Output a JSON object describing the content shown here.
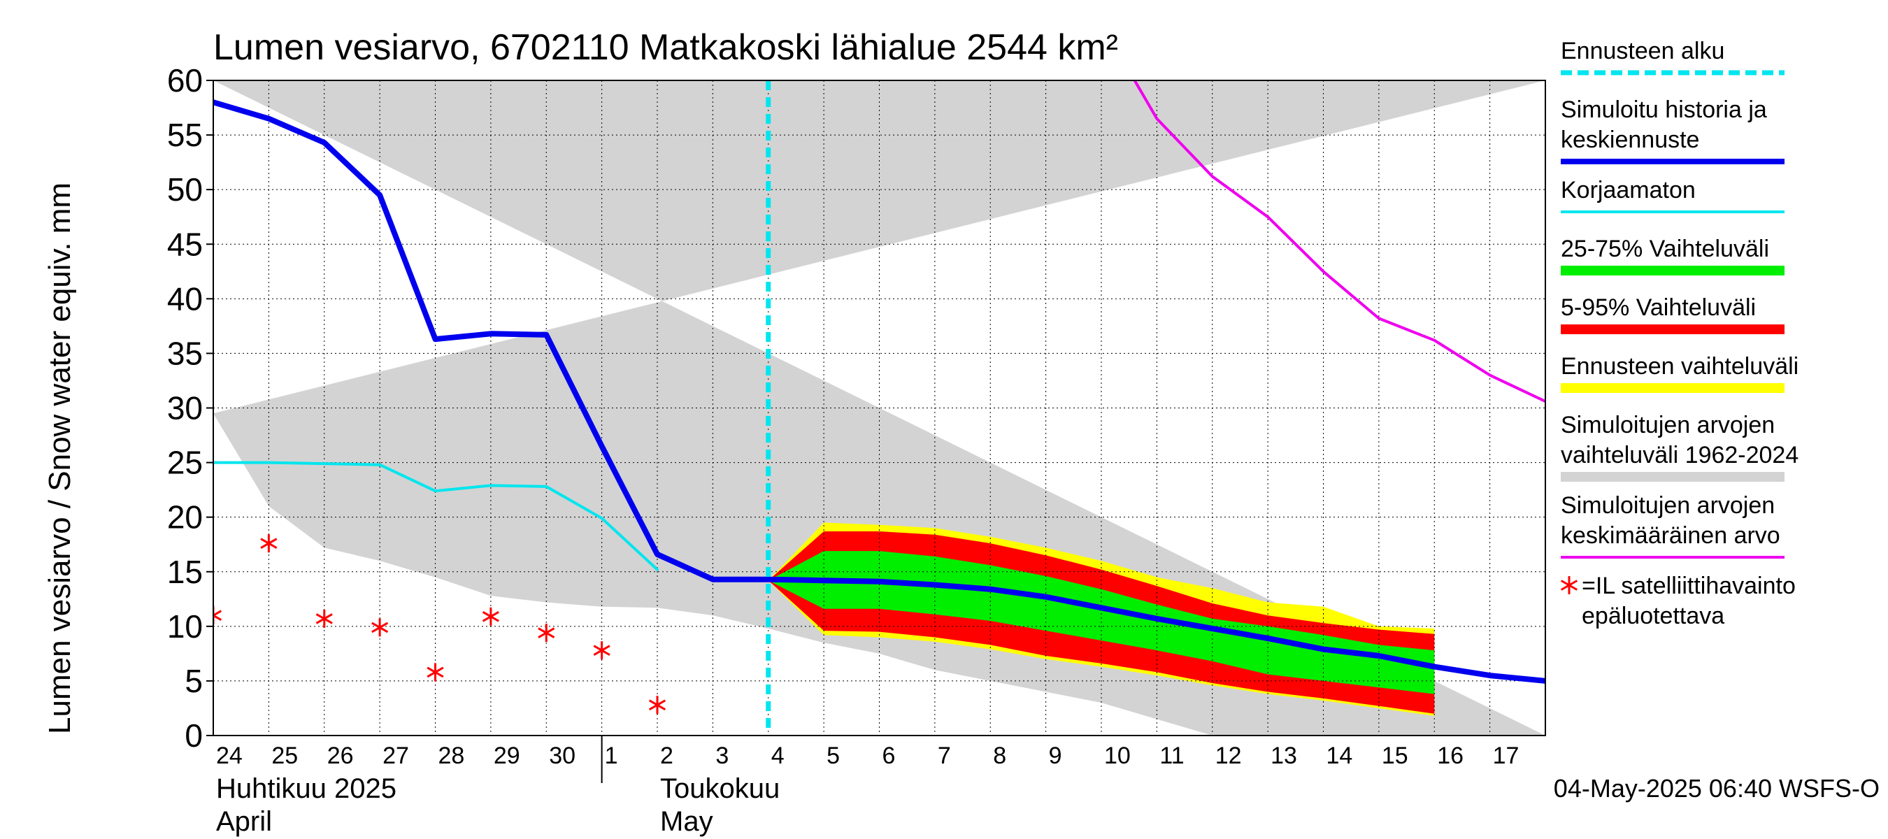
{
  "chart_data": {
    "type": "area",
    "title": "Lumen vesiarvo, 6702110 Matkakoski lähialue 2544 km²",
    "ylabel": "Lumen vesiarvo / Snow water equiv.    mm",
    "ylim": [
      0,
      60
    ],
    "yticks": [
      0,
      5,
      10,
      15,
      20,
      25,
      30,
      35,
      40,
      45,
      50,
      55,
      60
    ],
    "x_range_days": [
      0,
      24
    ],
    "day_labels": [
      "24",
      "25",
      "26",
      "27",
      "28",
      "29",
      "30",
      "1",
      "2",
      "3",
      "4",
      "5",
      "6",
      "7",
      "8",
      "9",
      "10",
      "11",
      "12",
      "13",
      "14",
      "15",
      "16",
      "17"
    ],
    "month_labels": [
      {
        "line1": "Huhtikuu  2025",
        "line2": "April",
        "day": 0
      },
      {
        "line1": "Toukokuu",
        "line2": "May",
        "day": 8
      }
    ],
    "month_boundary_day": 7,
    "forecast_start_day": 10,
    "timestamp": "04-May-2025 06:40 WSFS-O",
    "historical_range": {
      "upper": [
        [
          0,
          60
        ],
        [
          24,
          60
        ]
      ],
      "lower": [
        [
          0,
          29.5
        ],
        [
          1,
          21
        ],
        [
          2,
          17.2
        ],
        [
          3,
          16
        ],
        [
          4,
          14.5
        ],
        [
          5,
          12.8
        ],
        [
          6,
          12.2
        ],
        [
          7,
          11.8
        ],
        [
          8,
          11.7
        ],
        [
          9,
          11
        ],
        [
          10,
          9.8
        ],
        [
          11,
          8.5
        ],
        [
          12,
          7.5
        ],
        [
          13,
          6
        ],
        [
          14,
          5
        ],
        [
          15,
          4
        ],
        [
          16,
          3
        ],
        [
          17,
          1.5
        ],
        [
          18,
          0
        ],
        [
          24,
          0
        ]
      ]
    },
    "forecast_range": {
      "upper": [
        [
          10,
          14.2
        ],
        [
          11,
          19.5
        ],
        [
          12,
          19.3
        ],
        [
          13,
          19
        ],
        [
          14,
          18.2
        ],
        [
          15,
          17.2
        ],
        [
          16,
          16
        ],
        [
          17,
          14.5
        ],
        [
          18,
          13.5
        ],
        [
          19,
          12.2
        ],
        [
          20,
          11.8
        ],
        [
          21,
          10
        ],
        [
          22,
          9.8
        ]
      ],
      "lower": [
        [
          22,
          9.8
        ],
        [
          22,
          1.8
        ],
        [
          21,
          2.5
        ],
        [
          20,
          3.2
        ],
        [
          19,
          3.8
        ],
        [
          18,
          4.6
        ],
        [
          17,
          5.5
        ],
        [
          16,
          6.3
        ],
        [
          15,
          7
        ],
        [
          14,
          7.9
        ],
        [
          13,
          8.6
        ],
        [
          12,
          9
        ],
        [
          11,
          9.2
        ],
        [
          10,
          14.2
        ]
      ]
    },
    "p5_95": {
      "upper": [
        [
          10,
          14.2
        ],
        [
          11,
          18.7
        ],
        [
          12,
          18.7
        ],
        [
          13,
          18.4
        ],
        [
          14,
          17.6
        ],
        [
          15,
          16.5
        ],
        [
          16,
          15.2
        ],
        [
          17,
          13.7
        ],
        [
          18,
          12.1
        ],
        [
          19,
          11
        ],
        [
          20,
          10.3
        ],
        [
          21,
          9.7
        ],
        [
          22,
          9.3
        ]
      ],
      "lower": [
        [
          22,
          2
        ],
        [
          21,
          2.7
        ],
        [
          20,
          3.4
        ],
        [
          19,
          4
        ],
        [
          18,
          4.8
        ],
        [
          17,
          5.8
        ],
        [
          16,
          6.6
        ],
        [
          15,
          7.3
        ],
        [
          14,
          8.3
        ],
        [
          13,
          9
        ],
        [
          12,
          9.5
        ],
        [
          11,
          9.6
        ],
        [
          10,
          14.2
        ]
      ]
    },
    "p25_75": {
      "upper": [
        [
          10,
          14.2
        ],
        [
          11,
          16.9
        ],
        [
          12,
          16.9
        ],
        [
          13,
          16.4
        ],
        [
          14,
          15.6
        ],
        [
          15,
          14.6
        ],
        [
          16,
          13.4
        ],
        [
          17,
          12
        ],
        [
          18,
          10.7
        ],
        [
          19,
          10
        ],
        [
          20,
          9.2
        ],
        [
          21,
          8.3
        ],
        [
          22,
          7.8
        ]
      ],
      "lower": [
        [
          22,
          3.8
        ],
        [
          21,
          4.4
        ],
        [
          20,
          5
        ],
        [
          19,
          5.6
        ],
        [
          18,
          6.8
        ],
        [
          17,
          7.8
        ],
        [
          16,
          8.7
        ],
        [
          15,
          9.6
        ],
        [
          14,
          10.5
        ],
        [
          13,
          11.1
        ],
        [
          12,
          11.6
        ],
        [
          11,
          11.6
        ],
        [
          10,
          14.2
        ]
      ]
    },
    "series": [
      {
        "name": "Simuloitu historia ja keskiennuste",
        "color": "#0000ee",
        "width": 8,
        "points": [
          [
            0,
            58
          ],
          [
            1,
            56.5
          ],
          [
            2,
            54.3
          ],
          [
            3,
            49.5
          ],
          [
            4,
            36.3
          ],
          [
            5,
            36.8
          ],
          [
            6,
            36.7
          ],
          [
            7,
            26.5
          ],
          [
            8,
            16.6
          ],
          [
            9,
            14.3
          ],
          [
            10,
            14.3
          ],
          [
            11,
            14.2
          ],
          [
            12,
            14.1
          ],
          [
            13,
            13.8
          ],
          [
            14,
            13.4
          ],
          [
            15,
            12.7
          ],
          [
            16,
            11.7
          ],
          [
            17,
            10.7
          ],
          [
            18,
            9.8
          ],
          [
            19,
            8.9
          ],
          [
            20,
            7.9
          ],
          [
            21,
            7.3
          ],
          [
            22,
            6.3
          ],
          [
            23,
            5.5
          ],
          [
            24,
            5
          ]
        ]
      },
      {
        "name": "Korjaamaton",
        "color": "#00e5ee",
        "width": 4,
        "points": [
          [
            0,
            25
          ],
          [
            1,
            25
          ],
          [
            2,
            24.9
          ],
          [
            3,
            24.8
          ],
          [
            4,
            22.4
          ],
          [
            5,
            22.9
          ],
          [
            6,
            22.8
          ],
          [
            7,
            19.9
          ],
          [
            8,
            15.2
          ]
        ]
      },
      {
        "name": "Simuloitujen arvojen keskimääräinen arvo",
        "color": "#ee00ee",
        "width": 4,
        "points": [
          [
            16.6,
            60.5
          ],
          [
            17,
            56.5
          ],
          [
            18,
            51.2
          ],
          [
            19,
            47.5
          ],
          [
            20,
            42.5
          ],
          [
            21,
            38.2
          ],
          [
            22,
            36.2
          ],
          [
            23,
            33
          ],
          [
            24,
            30.6
          ]
        ]
      }
    ],
    "satellite_points": [
      [
        0,
        11
      ],
      [
        1,
        17.6
      ],
      [
        2,
        10.7
      ],
      [
        3,
        9.9
      ],
      [
        4,
        5.8
      ],
      [
        5,
        10.9
      ],
      [
        6,
        9.4
      ],
      [
        7,
        7.8
      ],
      [
        8,
        2.8
      ]
    ],
    "legend": [
      {
        "label_lines": [
          "Ennusteen alku"
        ],
        "color": "#00e5ee",
        "style": "dashed",
        "width": 7
      },
      {
        "label_lines": [
          "Simuloitu historia ja",
          "keskiennuste"
        ],
        "color": "#0000ee",
        "style": "solid",
        "width": 8
      },
      {
        "label_lines": [
          "Korjaamaton"
        ],
        "color": "#00e5ee",
        "style": "solid",
        "width": 4
      },
      {
        "label_lines": [
          "25-75% Vaihteluväli"
        ],
        "color": "#00ee00",
        "style": "solid",
        "width": 14
      },
      {
        "label_lines": [
          "5-95% Vaihteluväli"
        ],
        "color": "#ff0000",
        "style": "solid",
        "width": 14
      },
      {
        "label_lines": [
          "Ennusteen vaihteluväli"
        ],
        "color": "#ffff00",
        "style": "solid",
        "width": 14
      },
      {
        "label_lines": [
          "Simuloitujen arvojen",
          "vaihteluväli 1962-2024"
        ],
        "color": "#d3d3d3",
        "style": "solid",
        "width": 14
      },
      {
        "label_lines": [
          "Simuloitujen arvojen",
          "keskimääräinen arvo"
        ],
        "color": "#ee00ee",
        "style": "solid",
        "width": 4
      },
      {
        "label_lines": [
          "=IL satelliittihavainto",
          "epäluotettava"
        ],
        "color": "#ff0000",
        "style": "marker",
        "width": 3
      }
    ]
  }
}
